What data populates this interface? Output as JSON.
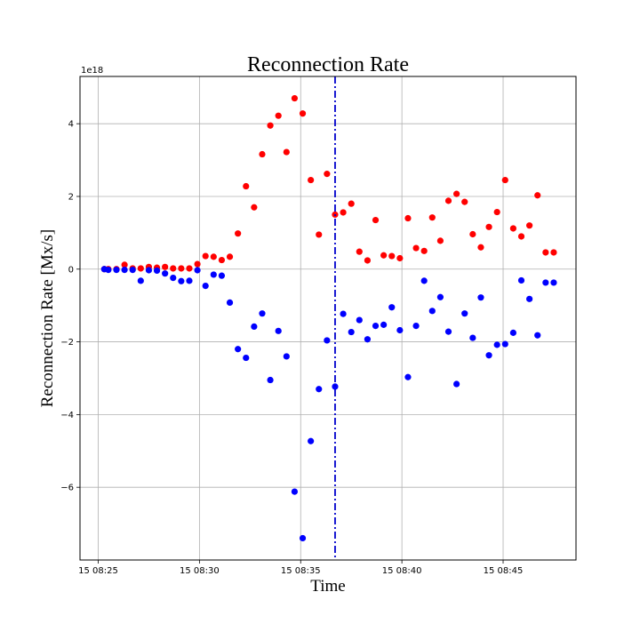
{
  "chart_data": {
    "type": "scatter",
    "title": "Reconnection Rate",
    "xlabel": "Time",
    "ylabel": "Reconnection Rate [Mx/s]",
    "y_offset_label": "1e18",
    "grid": true,
    "x_ticks": [
      "15 08:25",
      "15 08:30",
      "15 08:35",
      "15 08:40",
      "15 08:45"
    ],
    "x_tick_minutes": [
      25,
      30,
      35,
      40,
      45
    ],
    "y_ticks": [
      "−6",
      "−4",
      "−2",
      "0",
      "2",
      "4"
    ],
    "y_tick_values": [
      -6,
      -4,
      -2,
      0,
      2,
      4
    ],
    "xlim_minutes": [
      24.1,
      48.6
    ],
    "ylim": [
      -8.0,
      5.3
    ],
    "vline_minute": 36.7,
    "vline_color": "#0000cc",
    "series": [
      {
        "color": "#ff0000",
        "x": [
          25.3,
          25.5,
          25.9,
          26.3,
          26.7,
          27.1,
          27.5,
          27.9,
          28.3,
          28.7,
          29.1,
          29.5,
          29.9,
          30.3,
          30.7,
          31.1,
          31.5,
          31.9,
          32.3,
          32.7,
          33.1,
          33.5,
          33.9,
          34.3,
          34.7,
          35.1,
          35.5,
          35.9,
          36.3,
          36.7,
          37.1,
          37.5,
          37.9,
          38.3,
          38.7,
          39.1,
          39.5,
          39.9,
          40.3,
          40.7,
          41.1,
          41.5,
          41.9,
          42.3,
          42.7,
          43.1,
          43.5,
          43.9,
          44.3,
          44.7,
          45.1,
          45.5,
          45.9,
          46.3,
          46.7,
          47.1,
          47.5
        ],
        "y": [
          0.0,
          0.0,
          0.0,
          0.12,
          0.02,
          0.02,
          0.06,
          0.04,
          0.06,
          0.02,
          0.02,
          0.02,
          0.14,
          0.36,
          0.34,
          0.25,
          0.34,
          0.98,
          2.28,
          1.7,
          3.16,
          3.95,
          4.22,
          3.22,
          4.7,
          4.28,
          2.45,
          0.95,
          2.62,
          1.5,
          1.56,
          1.8,
          0.48,
          0.24,
          1.35,
          0.38,
          0.36,
          0.3,
          1.4,
          0.58,
          0.5,
          1.42,
          0.78,
          1.88,
          2.07,
          1.85,
          0.96,
          0.6,
          1.16,
          1.57,
          2.45,
          1.12,
          0.9,
          1.2,
          2.03,
          0.46,
          0.46
        ]
      },
      {
        "color": "#0000ff",
        "x": [
          25.3,
          25.5,
          25.9,
          26.3,
          26.7,
          27.1,
          27.5,
          27.9,
          28.3,
          28.7,
          29.1,
          29.5,
          29.9,
          30.3,
          30.7,
          31.1,
          31.5,
          31.9,
          32.3,
          32.7,
          33.1,
          33.5,
          33.9,
          34.3,
          34.7,
          35.1,
          35.5,
          35.9,
          36.3,
          36.7,
          37.1,
          37.5,
          37.9,
          38.3,
          38.7,
          39.1,
          39.5,
          39.9,
          40.3,
          40.7,
          41.1,
          41.5,
          41.9,
          42.3,
          42.7,
          43.1,
          43.5,
          43.9,
          44.3,
          44.7,
          45.1,
          45.5,
          45.9,
          46.3,
          46.7,
          47.1,
          47.5
        ],
        "y": [
          0.0,
          -0.02,
          -0.02,
          -0.02,
          -0.02,
          -0.32,
          -0.03,
          -0.04,
          -0.12,
          -0.24,
          -0.33,
          -0.32,
          -0.03,
          -0.46,
          -0.15,
          -0.18,
          -0.92,
          -2.2,
          -2.44,
          -1.58,
          -1.22,
          -3.05,
          -1.7,
          -2.4,
          -6.12,
          -7.4,
          -4.73,
          -3.3,
          -1.96,
          -3.23,
          -1.23,
          -1.73,
          -1.4,
          -1.93,
          -1.56,
          -1.53,
          -1.05,
          -1.68,
          -2.97,
          -1.56,
          -0.32,
          -1.15,
          -0.77,
          -1.72,
          -3.16,
          -1.22,
          -1.89,
          -0.78,
          -2.37,
          -2.08,
          -2.06,
          -1.75,
          -0.31,
          -0.82,
          -1.82,
          -0.37,
          -0.37
        ]
      }
    ]
  }
}
